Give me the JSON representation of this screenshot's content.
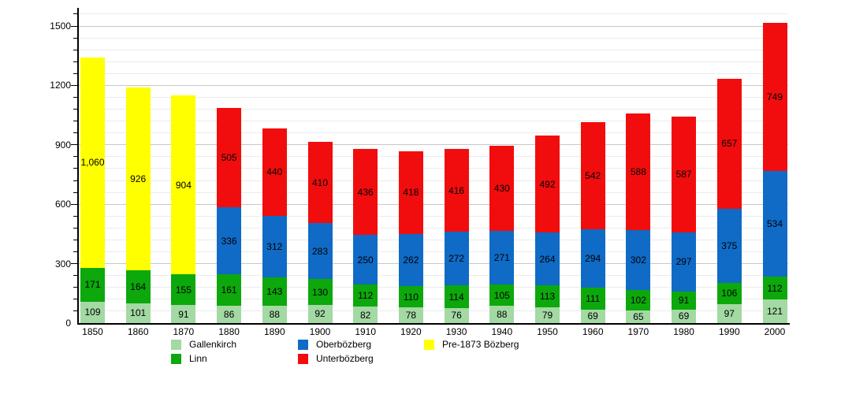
{
  "chart_data": {
    "type": "bar",
    "stacked": true,
    "title": "",
    "xlabel": "",
    "ylabel": "",
    "categories": [
      "1850",
      "1860",
      "1870",
      "1880",
      "1890",
      "1900",
      "1910",
      "1920",
      "1930",
      "1940",
      "1950",
      "1960",
      "1970",
      "1980",
      "1990",
      "2000"
    ],
    "series": [
      {
        "name": "Gallenkirch",
        "color": "#A3D9A3",
        "values": [
          109,
          101,
          91,
          86,
          88,
          92,
          82,
          78,
          76,
          88,
          79,
          69,
          65,
          69,
          97,
          121
        ]
      },
      {
        "name": "Linn",
        "color": "#0CA80C",
        "values": [
          171,
          164,
          155,
          161,
          143,
          130,
          112,
          110,
          114,
          105,
          113,
          111,
          102,
          91,
          106,
          112
        ]
      },
      {
        "name": "Oberbözberg",
        "color": "#0F6BC6",
        "values": [
          0,
          0,
          0,
          336,
          312,
          283,
          250,
          262,
          272,
          271,
          264,
          294,
          302,
          297,
          375,
          534
        ]
      },
      {
        "name": "Unterbözberg",
        "color": "#F10D0D",
        "values": [
          0,
          0,
          0,
          505,
          440,
          410,
          436,
          418,
          416,
          430,
          492,
          542,
          588,
          587,
          657,
          749
        ]
      },
      {
        "name": "Pre-1873 Bözberg",
        "color": "#FFFF00",
        "values": [
          1060,
          926,
          904,
          0,
          0,
          0,
          0,
          0,
          0,
          0,
          0,
          0,
          0,
          0,
          0,
          0
        ]
      }
    ],
    "y_axis": {
      "major_ticks": [
        0,
        300,
        600,
        900,
        1200,
        1500
      ],
      "minor_step": 60,
      "max": 1560
    },
    "grid": true,
    "legend_position": "bottom",
    "value_labels_shown": true,
    "colors": {
      "axis": "#000000",
      "grid_minor": "#ebebeb",
      "grid_major": "#c8c8c8",
      "background": "#ffffff",
      "label_text": "#000000"
    }
  }
}
